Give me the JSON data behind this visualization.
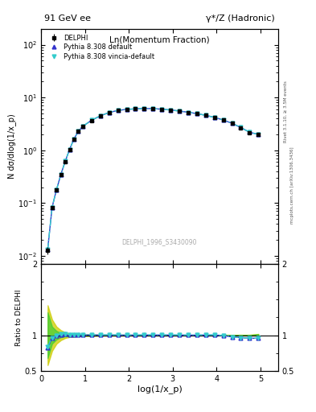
{
  "title_left": "91 GeV ee",
  "title_right": "γ*/Z (Hadronic)",
  "plot_title": "Ln(Momentum Fraction)",
  "xlabel": "log(1/x_p)",
  "ylabel_main": "N dσ/dlog(1/x_p)",
  "ylabel_ratio": "Ratio to DELPHI",
  "watermark": "DELPHI_1996_S3430090",
  "right_label": "mcplots.cern.ch [arXiv:1306.3436]",
  "right_label2": "Rivet 3.1.10, ≥ 3.5M events",
  "data_x": [
    0.15,
    0.25,
    0.35,
    0.45,
    0.55,
    0.65,
    0.75,
    0.85,
    0.95,
    1.15,
    1.35,
    1.55,
    1.75,
    1.95,
    2.15,
    2.35,
    2.55,
    2.75,
    2.95,
    3.15,
    3.35,
    3.55,
    3.75,
    3.95,
    4.15,
    4.35,
    4.55,
    4.75,
    4.95
  ],
  "data_y": [
    0.0125,
    0.083,
    0.175,
    0.34,
    0.61,
    1.03,
    1.63,
    2.28,
    2.83,
    3.68,
    4.48,
    5.18,
    5.68,
    5.93,
    6.08,
    6.18,
    6.13,
    5.98,
    5.78,
    5.53,
    5.23,
    4.93,
    4.58,
    4.18,
    3.73,
    3.23,
    2.68,
    2.18,
    1.98
  ],
  "data_yerr": [
    0.002,
    0.006,
    0.009,
    0.013,
    0.018,
    0.022,
    0.028,
    0.036,
    0.045,
    0.055,
    0.065,
    0.075,
    0.082,
    0.085,
    0.085,
    0.085,
    0.085,
    0.085,
    0.085,
    0.085,
    0.075,
    0.075,
    0.075,
    0.065,
    0.065,
    0.065,
    0.065,
    0.065,
    0.065
  ],
  "py_default_x": [
    0.15,
    0.25,
    0.35,
    0.45,
    0.55,
    0.65,
    0.75,
    0.85,
    0.95,
    1.15,
    1.35,
    1.55,
    1.75,
    1.95,
    2.15,
    2.35,
    2.55,
    2.75,
    2.95,
    3.15,
    3.35,
    3.55,
    3.75,
    3.95,
    4.15,
    4.35,
    4.55,
    4.75,
    4.95
  ],
  "py_default_y": [
    0.013,
    0.082,
    0.177,
    0.345,
    0.617,
    1.04,
    1.645,
    2.295,
    2.845,
    3.695,
    4.495,
    5.195,
    5.695,
    5.945,
    6.095,
    6.195,
    6.145,
    5.995,
    5.795,
    5.545,
    5.245,
    4.945,
    4.595,
    4.195,
    3.745,
    3.245,
    2.695,
    2.195,
    1.995
  ],
  "py_vincia_x": [
    0.15,
    0.25,
    0.35,
    0.45,
    0.55,
    0.65,
    0.75,
    0.85,
    0.95,
    1.15,
    1.35,
    1.55,
    1.75,
    1.95,
    2.15,
    2.35,
    2.55,
    2.75,
    2.95,
    3.15,
    3.35,
    3.55,
    3.75,
    3.95,
    4.15,
    4.35,
    4.55,
    4.75,
    4.95
  ],
  "py_vincia_y": [
    0.013,
    0.082,
    0.177,
    0.345,
    0.617,
    1.04,
    1.645,
    2.295,
    2.845,
    3.695,
    4.495,
    5.195,
    5.695,
    5.945,
    6.095,
    6.195,
    6.145,
    5.995,
    5.795,
    5.545,
    5.245,
    4.945,
    4.595,
    4.195,
    3.745,
    3.245,
    2.695,
    2.195,
    1.995
  ],
  "ratio_default_y": [
    0.82,
    0.96,
    0.99,
    1.01,
    1.012,
    1.008,
    1.008,
    1.004,
    1.003,
    1.003,
    1.002,
    1.002,
    1.002,
    1.001,
    1.001,
    1.002,
    1.002,
    1.002,
    1.002,
    1.001,
    1.001,
    1.001,
    1.002,
    1.002,
    0.996,
    0.975,
    0.965,
    0.957,
    0.957
  ],
  "ratio_vincia_y": [
    0.84,
    0.965,
    0.993,
    1.012,
    1.013,
    1.009,
    1.009,
    1.005,
    1.004,
    1.004,
    1.003,
    1.003,
    1.003,
    1.002,
    1.002,
    1.003,
    1.003,
    1.003,
    1.003,
    1.002,
    1.002,
    1.002,
    1.003,
    1.003,
    0.997,
    0.976,
    0.966,
    0.958,
    0.958
  ],
  "band_yellow_low": [
    0.58,
    0.78,
    0.88,
    0.93,
    0.96,
    0.975,
    0.977,
    0.987,
    0.988,
    0.989,
    0.993,
    0.993,
    0.993,
    0.994,
    0.994,
    0.994,
    0.995,
    0.995,
    0.995,
    0.995,
    0.996,
    0.996,
    0.996,
    0.996,
    0.996,
    0.996,
    0.995,
    0.995,
    0.993
  ],
  "band_yellow_high": [
    1.42,
    1.22,
    1.12,
    1.07,
    1.04,
    1.025,
    1.023,
    1.013,
    1.012,
    1.011,
    1.007,
    1.007,
    1.007,
    1.006,
    1.006,
    1.006,
    1.005,
    1.005,
    1.005,
    1.005,
    1.004,
    1.004,
    1.004,
    1.004,
    1.004,
    1.004,
    1.005,
    1.005,
    1.017
  ],
  "band_green_low": [
    0.68,
    0.88,
    0.94,
    0.97,
    0.982,
    0.989,
    0.99,
    0.993,
    0.993,
    0.995,
    0.997,
    0.997,
    0.997,
    0.997,
    0.998,
    0.998,
    0.998,
    0.998,
    0.998,
    0.998,
    0.998,
    0.998,
    0.998,
    0.998,
    0.998,
    0.998,
    0.998,
    0.998,
    0.996
  ],
  "band_green_high": [
    1.32,
    1.12,
    1.06,
    1.03,
    1.018,
    1.011,
    1.01,
    1.007,
    1.007,
    1.005,
    1.003,
    1.003,
    1.003,
    1.003,
    1.002,
    1.002,
    1.002,
    1.002,
    1.002,
    1.002,
    1.002,
    1.002,
    1.002,
    1.002,
    1.002,
    1.002,
    1.002,
    1.002,
    1.014
  ],
  "color_data": "#000000",
  "color_default": "#3333cc",
  "color_vincia": "#33cccc",
  "color_band_yellow": "#cccc00",
  "color_band_green": "#33cc33",
  "xlim": [
    0.0,
    5.4
  ],
  "ylim_main_log": [
    -2,
    2
  ],
  "ylim_main": [
    0.007,
    200
  ],
  "ylim_ratio": [
    0.5,
    2.0
  ],
  "yticks_ratio": [
    0.5,
    1.0,
    2.0
  ],
  "bg_color": "#ffffff"
}
